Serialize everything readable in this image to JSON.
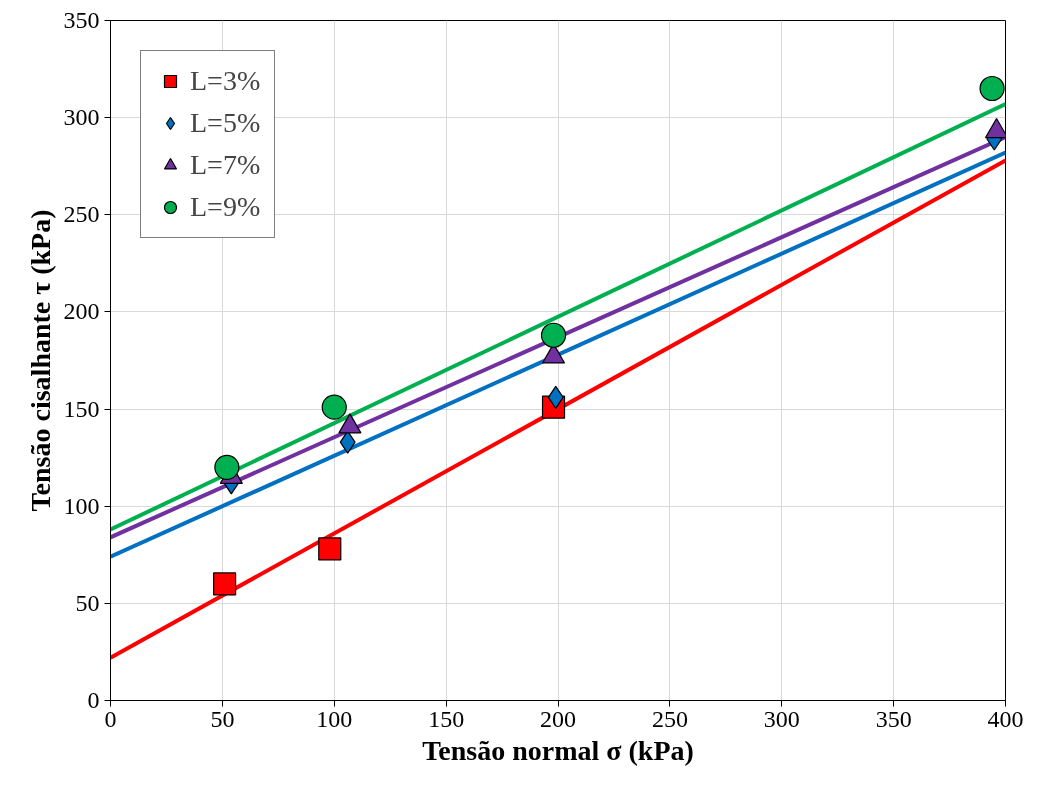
{
  "chart_data": {
    "type": "scatter",
    "xlabel": "Tensão normal σ (kPa)",
    "ylabel": "Tensão cisalhante τ (kPa)",
    "xlim": [
      0,
      400
    ],
    "ylim": [
      0,
      350
    ],
    "xticks": [
      0,
      50,
      100,
      150,
      200,
      250,
      300,
      350,
      400
    ],
    "yticks": [
      0,
      50,
      100,
      150,
      200,
      250,
      300,
      350
    ],
    "grid": true,
    "legend": "top left",
    "series": [
      {
        "name": "L=3%",
        "color": "#ff0000",
        "marker": "square",
        "x": [
          51,
          98,
          198
        ],
        "values": [
          60,
          78,
          151
        ]
      },
      {
        "name": "L=5%",
        "color": "#0070c0",
        "marker": "diamond",
        "x": [
          54,
          106,
          199,
          395
        ],
        "values": [
          112,
          133,
          156,
          289
        ]
      },
      {
        "name": "L=7%",
        "color": "#7030a0",
        "marker": "triangle",
        "x": [
          54,
          107,
          198,
          396
        ],
        "values": [
          115,
          141,
          177,
          293
        ]
      },
      {
        "name": "L=9%",
        "color": "#00b050",
        "marker": "circle",
        "x": [
          52,
          100,
          198,
          394
        ],
        "values": [
          120,
          151,
          188,
          315
        ]
      },
      {
        "type": "line",
        "color": "#ff0000",
        "x": [
          0,
          400
        ],
        "values": [
          22,
          278
        ]
      },
      {
        "type": "line",
        "color": "#0070c0",
        "x": [
          0,
          400
        ],
        "values": [
          74,
          282
        ]
      },
      {
        "type": "line",
        "color": "#7030a0",
        "x": [
          0,
          400
        ],
        "values": [
          84,
          290
        ]
      },
      {
        "type": "line",
        "color": "#00b050",
        "x": [
          0,
          400
        ],
        "values": [
          88,
          307
        ]
      }
    ]
  }
}
